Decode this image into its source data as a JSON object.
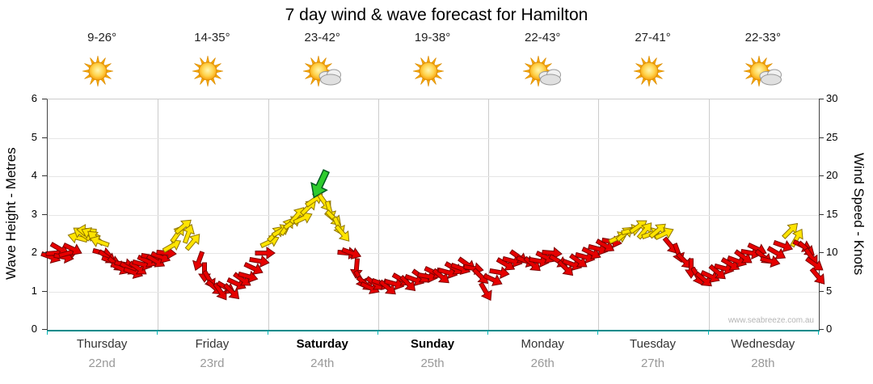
{
  "title": "7 day wind & wave forecast for Hamilton",
  "watermark": "www.seabreeze.com.au",
  "y_left": {
    "label": "Wave Height - Metres",
    "ticks": [
      0,
      1,
      2,
      3,
      4,
      5,
      6
    ],
    "min": 0,
    "max": 6
  },
  "y_right": {
    "label": "Wind Speed - Knots",
    "ticks": [
      0,
      5,
      10,
      15,
      20,
      25,
      30
    ],
    "min": 0,
    "max": 30
  },
  "days": [
    {
      "name": "Thursday",
      "date": "22nd",
      "temp": "9-26°",
      "icon": "sun",
      "bold": false
    },
    {
      "name": "Friday",
      "date": "23rd",
      "temp": "14-35°",
      "icon": "sun",
      "bold": false
    },
    {
      "name": "Saturday",
      "date": "24th",
      "temp": "23-42°",
      "icon": "sun-cloud",
      "bold": true
    },
    {
      "name": "Sunday",
      "date": "25th",
      "temp": "19-38°",
      "icon": "sun",
      "bold": true
    },
    {
      "name": "Monday",
      "date": "26th",
      "temp": "22-43°",
      "icon": "sun-cloud",
      "bold": false
    },
    {
      "name": "Tuesday",
      "date": "27th",
      "temp": "27-41°",
      "icon": "sun",
      "bold": false
    },
    {
      "name": "Wednesday",
      "date": "28th",
      "temp": "22-33°",
      "icon": "sun-cloud",
      "bold": false
    }
  ],
  "chart_data": {
    "type": "scatter",
    "title": "7 day wind & wave forecast for Hamilton",
    "x_axis": {
      "range": [
        0,
        7
      ],
      "categories": [
        "Thursday 22nd",
        "Friday 23rd",
        "Saturday 24th",
        "Sunday 25th",
        "Monday 26th",
        "Tuesday 27th",
        "Wednesday 28th"
      ]
    },
    "y_axis_left": {
      "label": "Wave Height - Metres",
      "range": [
        0,
        6
      ]
    },
    "y_axis_right": {
      "label": "Wind Speed - Knots",
      "range": [
        0,
        30
      ]
    },
    "colors": {
      "r": "#e60000",
      "y": "#ffe400",
      "g": "#2ecc2e"
    },
    "point_format": "[day_x, wind_knots, color_key, direction_deg]",
    "series": [
      {
        "name": "wind",
        "marker": "direction-arrow",
        "units": "knots",
        "points": [
          [
            0.03,
            9.5,
            "r",
            20
          ],
          [
            0.07,
            10,
            "r",
            -5
          ],
          [
            0.11,
            10.5,
            "r",
            30
          ],
          [
            0.15,
            9.5,
            "r",
            10
          ],
          [
            0.19,
            10,
            "r",
            -15
          ],
          [
            0.23,
            10.5,
            "r",
            25
          ],
          [
            0.27,
            12,
            "y",
            195
          ],
          [
            0.31,
            12.5,
            "y",
            215
          ],
          [
            0.35,
            13,
            "y",
            185
          ],
          [
            0.39,
            12.5,
            "y",
            205
          ],
          [
            0.43,
            12,
            "y",
            220
          ],
          [
            0.47,
            11.5,
            "y",
            200
          ],
          [
            0.5,
            10,
            "r",
            15
          ],
          [
            0.54,
            9.5,
            "r",
            35
          ],
          [
            0.58,
            9,
            "r",
            20
          ],
          [
            0.62,
            8.5,
            "r",
            40
          ],
          [
            0.66,
            8,
            "r",
            25
          ],
          [
            0.7,
            8.5,
            "r",
            10
          ],
          [
            0.74,
            8,
            "r",
            30
          ],
          [
            0.78,
            7.5,
            "r",
            20
          ],
          [
            0.82,
            8,
            "r",
            35
          ],
          [
            0.86,
            8.5,
            "r",
            15
          ],
          [
            0.9,
            9,
            "r",
            25
          ],
          [
            0.94,
            9.5,
            "r",
            10
          ],
          [
            0.98,
            9,
            "r",
            30
          ],
          [
            1.03,
            9.5,
            "r",
            20
          ],
          [
            1.08,
            10,
            "r",
            5
          ],
          [
            1.13,
            11,
            "y",
            -30
          ],
          [
            1.18,
            12.5,
            "y",
            -55
          ],
          [
            1.23,
            13.5,
            "y",
            -40
          ],
          [
            1.28,
            12.5,
            "y",
            -70
          ],
          [
            1.32,
            11.5,
            "y",
            -50
          ],
          [
            1.37,
            9,
            "r",
            110
          ],
          [
            1.42,
            7.5,
            "r",
            90
          ],
          [
            1.47,
            6.5,
            "r",
            60
          ],
          [
            1.52,
            5.5,
            "r",
            40
          ],
          [
            1.57,
            5,
            "r",
            55
          ],
          [
            1.62,
            5.5,
            "r",
            30
          ],
          [
            1.67,
            5,
            "r",
            45
          ],
          [
            1.72,
            6,
            "r",
            25
          ],
          [
            1.77,
            6.5,
            "r",
            35
          ],
          [
            1.82,
            7,
            "r",
            15
          ],
          [
            1.87,
            8,
            "r",
            25
          ],
          [
            1.92,
            9,
            "r",
            10
          ],
          [
            1.97,
            10,
            "r",
            0
          ],
          [
            2.02,
            11.5,
            "y",
            -25
          ],
          [
            2.07,
            12.5,
            "y",
            -45
          ],
          [
            2.12,
            13,
            "y",
            -30
          ],
          [
            2.17,
            13.5,
            "y",
            -55
          ],
          [
            2.22,
            14,
            "y",
            -35
          ],
          [
            2.27,
            15,
            "y",
            -50
          ],
          [
            2.32,
            14.5,
            "y",
            -25
          ],
          [
            2.37,
            16,
            "y",
            -45
          ],
          [
            2.42,
            17,
            "y",
            -35
          ],
          [
            2.47,
            19,
            "g",
            115
          ],
          [
            2.52,
            16.5,
            "y",
            55
          ],
          [
            2.56,
            15.5,
            "y",
            75
          ],
          [
            2.6,
            14.5,
            "y",
            45
          ],
          [
            2.64,
            13.5,
            "y",
            65
          ],
          [
            2.68,
            12.5,
            "y",
            50
          ],
          [
            2.72,
            10,
            "r",
            5
          ],
          [
            2.76,
            10,
            "r",
            20
          ],
          [
            2.8,
            8,
            "r",
            95
          ],
          [
            2.84,
            6.5,
            "r",
            60
          ],
          [
            2.88,
            6,
            "r",
            40
          ],
          [
            2.93,
            5.5,
            "r",
            25
          ],
          [
            2.97,
            6,
            "r",
            35
          ],
          [
            3.03,
            6,
            "r",
            20
          ],
          [
            3.09,
            5.5,
            "r",
            40
          ],
          [
            3.15,
            6,
            "r",
            15
          ],
          [
            3.21,
            6.5,
            "r",
            30
          ],
          [
            3.27,
            6,
            "r",
            45
          ],
          [
            3.33,
            6.5,
            "r",
            20
          ],
          [
            3.39,
            7,
            "r",
            35
          ],
          [
            3.45,
            7,
            "r",
            10
          ],
          [
            3.51,
            7.5,
            "r",
            25
          ],
          [
            3.57,
            7,
            "r",
            40
          ],
          [
            3.63,
            7.5,
            "r",
            15
          ],
          [
            3.69,
            8,
            "r",
            30
          ],
          [
            3.75,
            8,
            "r",
            20
          ],
          [
            3.81,
            8.5,
            "r",
            35
          ],
          [
            3.87,
            8,
            "r",
            10
          ],
          [
            3.93,
            7,
            "r",
            45
          ],
          [
            3.98,
            5,
            "r",
            60
          ],
          [
            4.04,
            6.5,
            "r",
            25
          ],
          [
            4.1,
            7.5,
            "r",
            10
          ],
          [
            4.16,
            8.5,
            "r",
            30
          ],
          [
            4.22,
            9,
            "r",
            15
          ],
          [
            4.28,
            9.5,
            "r",
            35
          ],
          [
            4.34,
            9,
            "r",
            20
          ],
          [
            4.4,
            8.5,
            "r",
            40
          ],
          [
            4.46,
            9,
            "r",
            10
          ],
          [
            4.52,
            9.5,
            "r",
            25
          ],
          [
            4.58,
            10,
            "r",
            5
          ],
          [
            4.64,
            9,
            "r",
            30
          ],
          [
            4.7,
            8,
            "r",
            45
          ],
          [
            4.76,
            8.5,
            "r",
            20
          ],
          [
            4.82,
            9,
            "r",
            35
          ],
          [
            4.88,
            9.5,
            "r",
            15
          ],
          [
            4.94,
            10,
            "r",
            25
          ],
          [
            5.0,
            10.5,
            "r",
            15
          ],
          [
            5.06,
            11,
            "r",
            30
          ],
          [
            5.12,
            11.5,
            "r",
            10
          ],
          [
            5.18,
            12,
            "y",
            -25
          ],
          [
            5.24,
            12.5,
            "y",
            -40
          ],
          [
            5.3,
            13,
            "y",
            -15
          ],
          [
            5.36,
            13.5,
            "y",
            -35
          ],
          [
            5.42,
            13,
            "y",
            -50
          ],
          [
            5.48,
            12.5,
            "y",
            -20
          ],
          [
            5.54,
            13,
            "y",
            -40
          ],
          [
            5.6,
            12.5,
            "y",
            -25
          ],
          [
            5.66,
            11,
            "r",
            50
          ],
          [
            5.72,
            10,
            "r",
            70
          ],
          [
            5.78,
            9,
            "r",
            45
          ],
          [
            5.84,
            8,
            "r",
            90
          ],
          [
            5.9,
            7,
            "r",
            60
          ],
          [
            5.96,
            6.5,
            "r",
            40
          ],
          [
            6.02,
            7,
            "r",
            25
          ],
          [
            6.08,
            7.5,
            "r",
            40
          ],
          [
            6.14,
            8,
            "r",
            15
          ],
          [
            6.2,
            8.5,
            "r",
            30
          ],
          [
            6.26,
            9,
            "r",
            20
          ],
          [
            6.32,
            9.5,
            "r",
            35
          ],
          [
            6.38,
            10,
            "r",
            10
          ],
          [
            6.44,
            10.5,
            "r",
            25
          ],
          [
            6.5,
            9.5,
            "r",
            40
          ],
          [
            6.56,
            9,
            "r",
            15
          ],
          [
            6.62,
            10,
            "r",
            30
          ],
          [
            6.68,
            11,
            "r",
            20
          ],
          [
            6.74,
            13,
            "y",
            -45
          ],
          [
            6.8,
            12,
            "y",
            -60
          ],
          [
            6.85,
            11,
            "r",
            25
          ],
          [
            6.89,
            10.5,
            "r",
            40
          ],
          [
            6.93,
            9.5,
            "r",
            55
          ],
          [
            6.96,
            8.5,
            "r",
            35
          ],
          [
            6.99,
            7,
            "r",
            50
          ]
        ]
      }
    ]
  }
}
